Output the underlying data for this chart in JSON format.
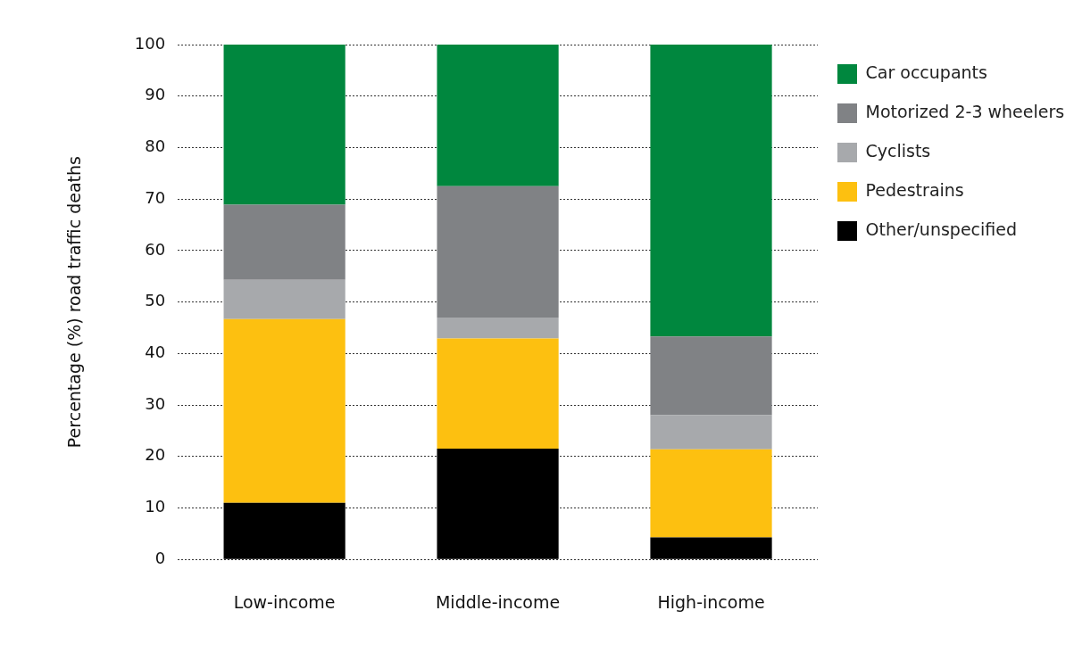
{
  "chart_data": {
    "type": "bar",
    "stacked": true,
    "ylabel": "Percentage (%) road traffic deaths",
    "categories": [
      "Low-income",
      "Middle-income",
      "High-income"
    ],
    "series": [
      {
        "name": "Other/unspecified",
        "color": "#000000",
        "values": [
          11,
          21.5,
          4.3
        ]
      },
      {
        "name": "Pedestrains",
        "color": "#fdc010",
        "values": [
          35.7,
          21.4,
          17.1
        ]
      },
      {
        "name": "Cyclists",
        "color": "#a7a9ac",
        "values": [
          7.6,
          4.1,
          6.6
        ]
      },
      {
        "name": "Motorized 2-3 wheelers",
        "color": "#808285",
        "values": [
          14.6,
          25.5,
          15.3
        ]
      },
      {
        "name": "Car occupants",
        "color": "#00873e",
        "values": [
          31.1,
          27.5,
          56.7
        ]
      }
    ],
    "ylim": [
      0,
      100
    ],
    "yticks": [
      0,
      10,
      20,
      30,
      40,
      50,
      60,
      70,
      80,
      90,
      100
    ],
    "grid": "y",
    "legend": "top right"
  }
}
